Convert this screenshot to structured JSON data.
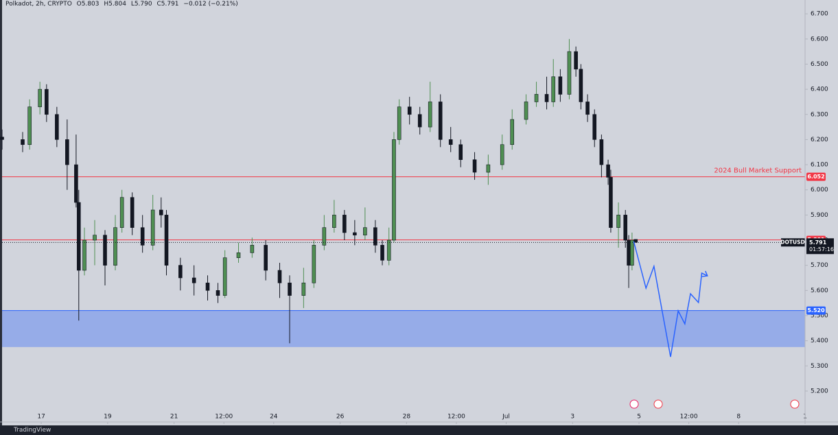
{
  "header": {
    "symbol": "Polkadot, 2h, CRYPTO",
    "open": "O5.803",
    "high": "H5.804",
    "low": "L5.790",
    "close": "C5.791",
    "change": "−0.012 (−0.21%)"
  },
  "chart_data": {
    "type": "candlestick",
    "x": [
      -0.18,
      0.44,
      0.65,
      0.96,
      1.16,
      1.47,
      1.78,
      2.05,
      2.13,
      2.3,
      2.61,
      2.92,
      3.23,
      3.43,
      3.74,
      4.05,
      4.36,
      4.61,
      4.77,
      5.19,
      5.6,
      6.01,
      6.32,
      6.53,
      6.94,
      7.35,
      7.76,
      8.18,
      8.48,
      8.9,
      9.21,
      9.52,
      9.82,
      10.13,
      10.44,
      10.75,
      11.06,
      11.27,
      11.47,
      11.62,
      11.78,
      12.09,
      12.4,
      12.71,
      13.02,
      13.33,
      13.63,
      14.05,
      14.46,
      14.88,
      15.18,
      15.6,
      15.91,
      16.22,
      16.42,
      16.63,
      16.9,
      17.1,
      17.25,
      17.45,
      17.66,
      17.87,
      18.07,
      18.15,
      18.38,
      18.59,
      18.69,
      18.79,
      18.9
    ],
    "open": [
      6.21,
      6.2,
      6.18,
      6.33,
      6.4,
      6.3,
      6.2,
      6.1,
      5.95,
      5.68,
      5.8,
      5.82,
      5.7,
      5.85,
      5.97,
      5.85,
      5.78,
      5.92,
      5.9,
      5.7,
      5.65,
      5.63,
      5.6,
      5.58,
      5.73,
      5.75,
      5.78,
      5.68,
      5.63,
      5.58,
      5.63,
      5.78,
      5.85,
      5.9,
      5.83,
      5.82,
      5.85,
      5.78,
      5.72,
      5.8,
      6.2,
      6.33,
      6.3,
      6.25,
      6.35,
      6.2,
      6.18,
      6.12,
      6.07,
      6.1,
      6.18,
      6.28,
      6.35,
      6.38,
      6.35,
      6.45,
      6.38,
      6.55,
      6.48,
      6.35,
      6.3,
      6.2,
      6.1,
      6.05,
      5.85,
      5.9,
      5.8,
      5.7,
      5.803
    ],
    "high": [
      6.24,
      6.23,
      6.36,
      6.43,
      6.42,
      6.33,
      6.28,
      6.22,
      6.0,
      5.85,
      5.88,
      5.84,
      5.9,
      6.0,
      5.99,
      5.9,
      5.98,
      5.97,
      5.92,
      5.73,
      5.7,
      5.66,
      5.63,
      5.76,
      5.79,
      5.81,
      5.8,
      5.71,
      5.66,
      5.69,
      5.8,
      5.9,
      5.96,
      5.92,
      5.88,
      5.93,
      5.88,
      5.8,
      5.85,
      6.23,
      6.36,
      6.37,
      6.33,
      6.43,
      6.38,
      6.25,
      6.2,
      6.15,
      6.14,
      6.22,
      6.32,
      6.38,
      6.43,
      6.45,
      6.52,
      6.48,
      6.6,
      6.57,
      6.5,
      6.38,
      6.32,
      6.22,
      6.12,
      6.08,
      5.95,
      5.92,
      5.82,
      5.83,
      5.804
    ],
    "low": [
      6.16,
      6.15,
      6.16,
      6.3,
      6.27,
      6.17,
      6.0,
      5.93,
      5.48,
      5.66,
      5.7,
      5.62,
      5.68,
      5.83,
      5.82,
      5.75,
      5.76,
      5.85,
      5.66,
      5.6,
      5.58,
      5.56,
      5.55,
      5.57,
      5.71,
      5.73,
      5.64,
      5.57,
      5.39,
      5.53,
      5.61,
      5.76,
      5.83,
      5.8,
      5.78,
      5.8,
      5.75,
      5.7,
      5.7,
      5.79,
      6.18,
      6.26,
      6.22,
      6.23,
      6.17,
      6.15,
      6.09,
      6.04,
      6.02,
      6.08,
      6.16,
      6.26,
      6.33,
      6.32,
      6.33,
      6.35,
      6.36,
      6.45,
      6.32,
      6.27,
      6.17,
      6.05,
      6.02,
      5.83,
      5.77,
      5.77,
      5.61,
      5.68,
      5.79
    ],
    "close": [
      6.2,
      6.18,
      6.33,
      6.4,
      6.3,
      6.2,
      6.1,
      5.95,
      5.68,
      5.8,
      5.82,
      5.7,
      5.85,
      5.97,
      5.85,
      5.78,
      5.92,
      5.9,
      5.7,
      5.65,
      5.63,
      5.6,
      5.58,
      5.73,
      5.75,
      5.78,
      5.68,
      5.63,
      5.58,
      5.63,
      5.78,
      5.85,
      5.9,
      5.83,
      5.82,
      5.85,
      5.78,
      5.72,
      5.8,
      6.2,
      6.33,
      6.3,
      6.25,
      6.35,
      6.2,
      6.18,
      6.12,
      6.07,
      6.1,
      6.18,
      6.28,
      6.35,
      6.38,
      6.35,
      6.45,
      6.38,
      6.55,
      6.48,
      6.35,
      6.3,
      6.2,
      6.1,
      6.05,
      5.85,
      5.9,
      5.8,
      5.7,
      5.8,
      5.791
    ],
    "up_color": "#4f8f52",
    "down_color": "#131722",
    "xlim": [
      -0.18,
      24.0
    ],
    "ylim": [
      5.077,
      6.755
    ],
    "xticks": [
      {
        "value": 1,
        "label": "17"
      },
      {
        "value": 3,
        "label": "19"
      },
      {
        "value": 5,
        "label": "21"
      },
      {
        "value": 6.5,
        "label": "12:00"
      },
      {
        "value": 8,
        "label": "24"
      },
      {
        "value": 10,
        "label": "26"
      },
      {
        "value": 12,
        "label": "28"
      },
      {
        "value": 13.5,
        "label": "12:00"
      },
      {
        "value": 15,
        "label": "Jul"
      },
      {
        "value": 17,
        "label": "3"
      },
      {
        "value": 19,
        "label": "5"
      },
      {
        "value": 20.5,
        "label": "12:00"
      },
      {
        "value": 22,
        "label": "8"
      },
      {
        "value": 24,
        "label": "1"
      }
    ],
    "yticks": [
      {
        "value": 6.7,
        "label": "6.700"
      },
      {
        "value": 6.6,
        "label": "6.600"
      },
      {
        "value": 6.5,
        "label": "6.500"
      },
      {
        "value": 6.4,
        "label": "6.400"
      },
      {
        "value": 6.3,
        "label": "6.300"
      },
      {
        "value": 6.2,
        "label": "6.200"
      },
      {
        "value": 6.1,
        "label": "6.100"
      },
      {
        "value": 6.0,
        "label": "6.000"
      },
      {
        "value": 5.9,
        "label": "5.900"
      },
      {
        "value": 5.8,
        "label": "5.800"
      },
      {
        "value": 5.7,
        "label": "5.700"
      },
      {
        "value": 5.6,
        "label": "5.600"
      },
      {
        "value": 5.5,
        "label": "5.500"
      },
      {
        "value": 5.4,
        "label": "5.400"
      },
      {
        "value": 5.3,
        "label": "5.300"
      },
      {
        "value": 5.2,
        "label": "5.200"
      }
    ],
    "levels": [
      {
        "name": "2024 Bull Market Support",
        "value": 6.052,
        "color": "#f23645"
      },
      {
        "value": 5.801,
        "color": "#f23645"
      }
    ],
    "last_price": {
      "symbol": "DOTUSD",
      "value": 5.791,
      "countdown": "01:57:16"
    },
    "zone": {
      "top": {
        "value": 5.52,
        "label": "5.520"
      },
      "bottom": 5.375,
      "color": "#2962ff"
    },
    "projection": {
      "x": [
        18.84,
        19.21,
        19.45,
        19.95,
        20.18,
        20.38,
        20.55,
        20.79,
        20.89,
        21.06
      ],
      "values": [
        5.795,
        5.609,
        5.696,
        5.336,
        5.519,
        5.467,
        5.587,
        5.552,
        5.669,
        5.658
      ],
      "color": "#2962ff"
    }
  },
  "footer": {
    "brand": "TradingView"
  }
}
